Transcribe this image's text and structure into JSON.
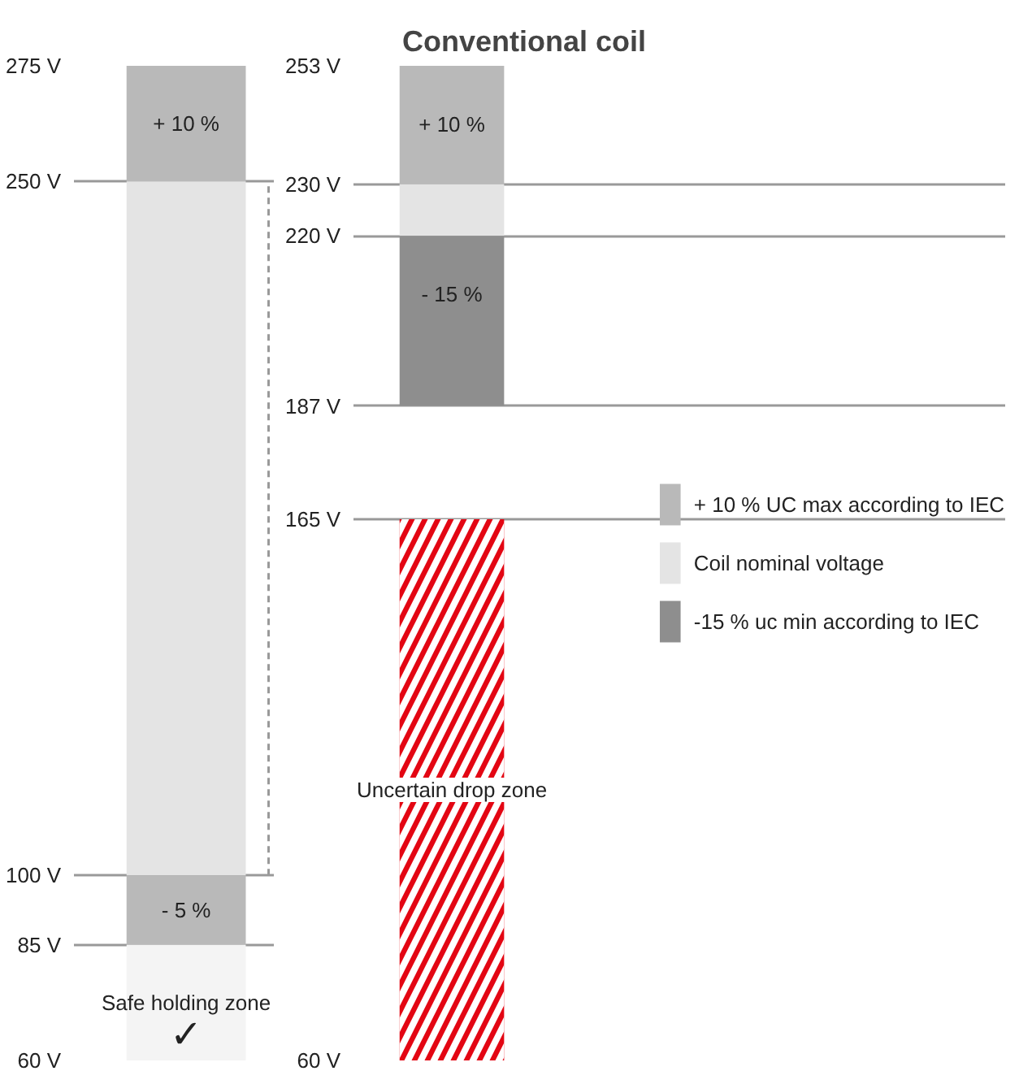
{
  "chart_data": [
    {
      "type": "bar",
      "categories": [
        null
      ],
      "ylim": [
        60,
        275
      ],
      "grid": "y",
      "series": [
        {
          "color": "#b9b9b9",
          "type": "bar",
          "base": [
            250
          ],
          "values": [
            25
          ]
        },
        {
          "color": "#e4e4e4",
          "type": "bar",
          "base": [
            100
          ],
          "values": [
            150
          ]
        },
        {
          "color": "#b9b9b9",
          "type": "bar",
          "base": [
            85
          ],
          "values": [
            15
          ]
        },
        {
          "color": "#f4f4f4",
          "type": "bar",
          "base": [
            60
          ],
          "values": [
            25
          ]
        }
      ],
      "yticks": [
        {
          "value": 275,
          "label": "275 V"
        },
        {
          "value": 250,
          "label": "250 V"
        },
        {
          "value": 100,
          "label": "100 V"
        },
        {
          "value": 85,
          "label": "85 V"
        },
        {
          "value": 60,
          "label": "60 V"
        }
      ],
      "annotations": [
        {
          "text": "+ 10 %",
          "y": 275
        },
        {
          "text": "- 5 %",
          "y": 100
        },
        {
          "text": "Safe holding zone",
          "y": 85
        },
        {
          "text": "✓",
          "y": 60
        }
      ]
    },
    {
      "type": "bar",
      "title": "Conventional coil",
      "categories": [
        null
      ],
      "ylim": [
        60,
        253
      ],
      "grid": "y",
      "legend": "right",
      "series": [
        {
          "name": "+ 10 % UC max according to IEC",
          "color": "#b9b9b9",
          "type": "bar",
          "base": [
            230
          ],
          "values": [
            23
          ]
        },
        {
          "name": "Coil nominal voltage",
          "color": "#e4e4e4",
          "type": "bar",
          "base": [
            220
          ],
          "values": [
            10
          ]
        },
        {
          "name": "-15 % uc min according to IEC",
          "color": "#8e8e8e",
          "type": "bar",
          "base": [
            187
          ],
          "values": [
            33
          ]
        },
        {
          "color": "#e30613",
          "type": "bar",
          "base": [
            60
          ],
          "values": [
            105
          ]
        }
      ],
      "yticks": [
        {
          "value": 253,
          "label": "253 V"
        },
        {
          "value": 230,
          "label": "230 V"
        },
        {
          "value": 220,
          "label": "220 V"
        },
        {
          "value": 187,
          "label": "187 V"
        },
        {
          "value": 165,
          "label": "165 V"
        },
        {
          "value": 60,
          "label": "60 V"
        }
      ],
      "annotations": [
        {
          "text": "+ 10 %",
          "y": 253
        },
        {
          "text": "- 15 %",
          "y": 220
        },
        "Uncertain drop zone"
      ]
    }
  ]
}
